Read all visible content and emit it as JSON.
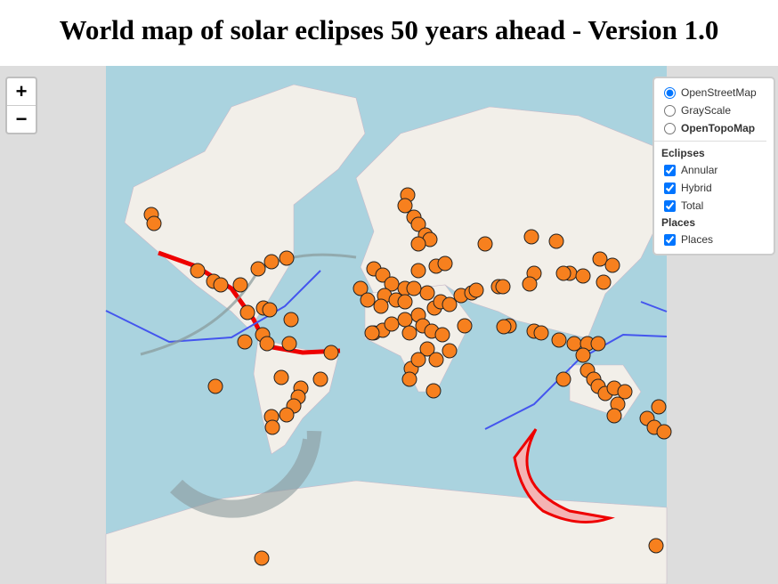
{
  "header": {
    "title": "World map of solar eclipses 50 years ahead - Version 1.0"
  },
  "zoom": {
    "in": "+",
    "out": "−"
  },
  "layers": {
    "base": [
      "OpenStreetMap",
      "GrayScale",
      "OpenTopoMap"
    ],
    "eclipses_title": "Eclipses",
    "eclipses": [
      "Annular",
      "Hybrid",
      "Total"
    ],
    "places_title": "Places",
    "places": [
      "Places"
    ]
  }
}
